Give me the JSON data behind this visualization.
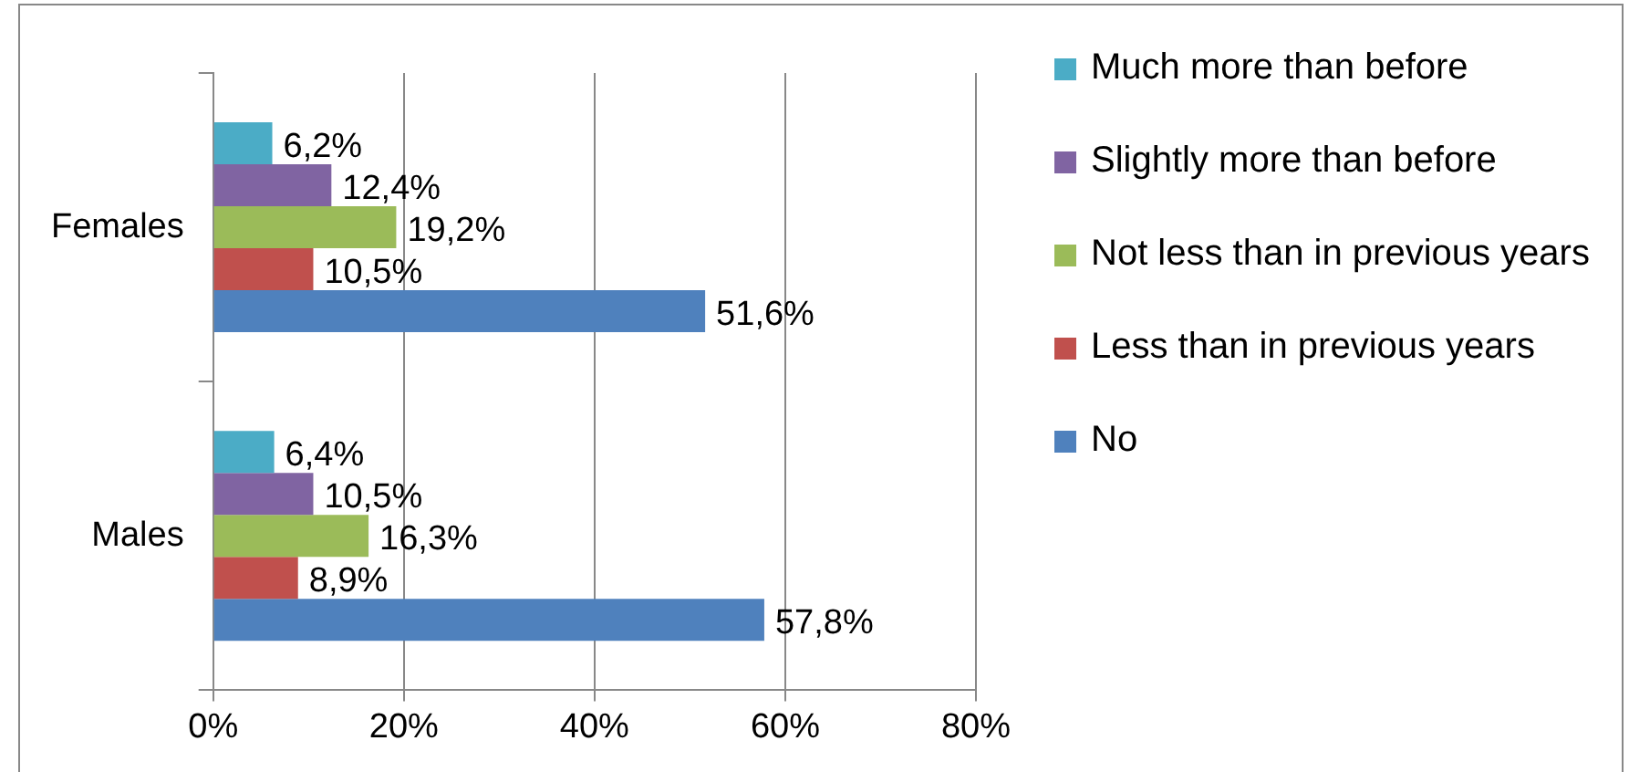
{
  "chart_data": {
    "type": "bar",
    "orientation": "horizontal",
    "categories": [
      "Females",
      "Males"
    ],
    "series": [
      {
        "name": "Much more than before",
        "color": "#4bacc6",
        "values": [
          6.2,
          6.4
        ],
        "value_labels": [
          "6,2%",
          "6,4%"
        ]
      },
      {
        "name": "Slightly more than before",
        "color": "#8064a2",
        "values": [
          12.4,
          10.5
        ],
        "value_labels": [
          "12,4%",
          "10,5%"
        ]
      },
      {
        "name": "Not less than in previous years",
        "color": "#9bbb59",
        "values": [
          19.2,
          16.3
        ],
        "value_labels": [
          "19,2%",
          "16,3%"
        ]
      },
      {
        "name": "Less than in previous years",
        "color": "#c0504d",
        "values": [
          10.5,
          8.9
        ],
        "value_labels": [
          "10,5%",
          "8,9%"
        ]
      },
      {
        "name": "No",
        "color": "#4f81bd",
        "values": [
          51.6,
          57.8
        ],
        "value_labels": [
          "51,6%",
          "57,8%"
        ]
      }
    ],
    "xlim": [
      0,
      80
    ],
    "xticks": [
      {
        "value": 0,
        "label": "0%"
      },
      {
        "value": 20,
        "label": "20%"
      },
      {
        "value": 40,
        "label": "40%"
      },
      {
        "value": 60,
        "label": "60%"
      },
      {
        "value": 80,
        "label": "80%"
      }
    ],
    "grid": "x",
    "legend": "right"
  }
}
